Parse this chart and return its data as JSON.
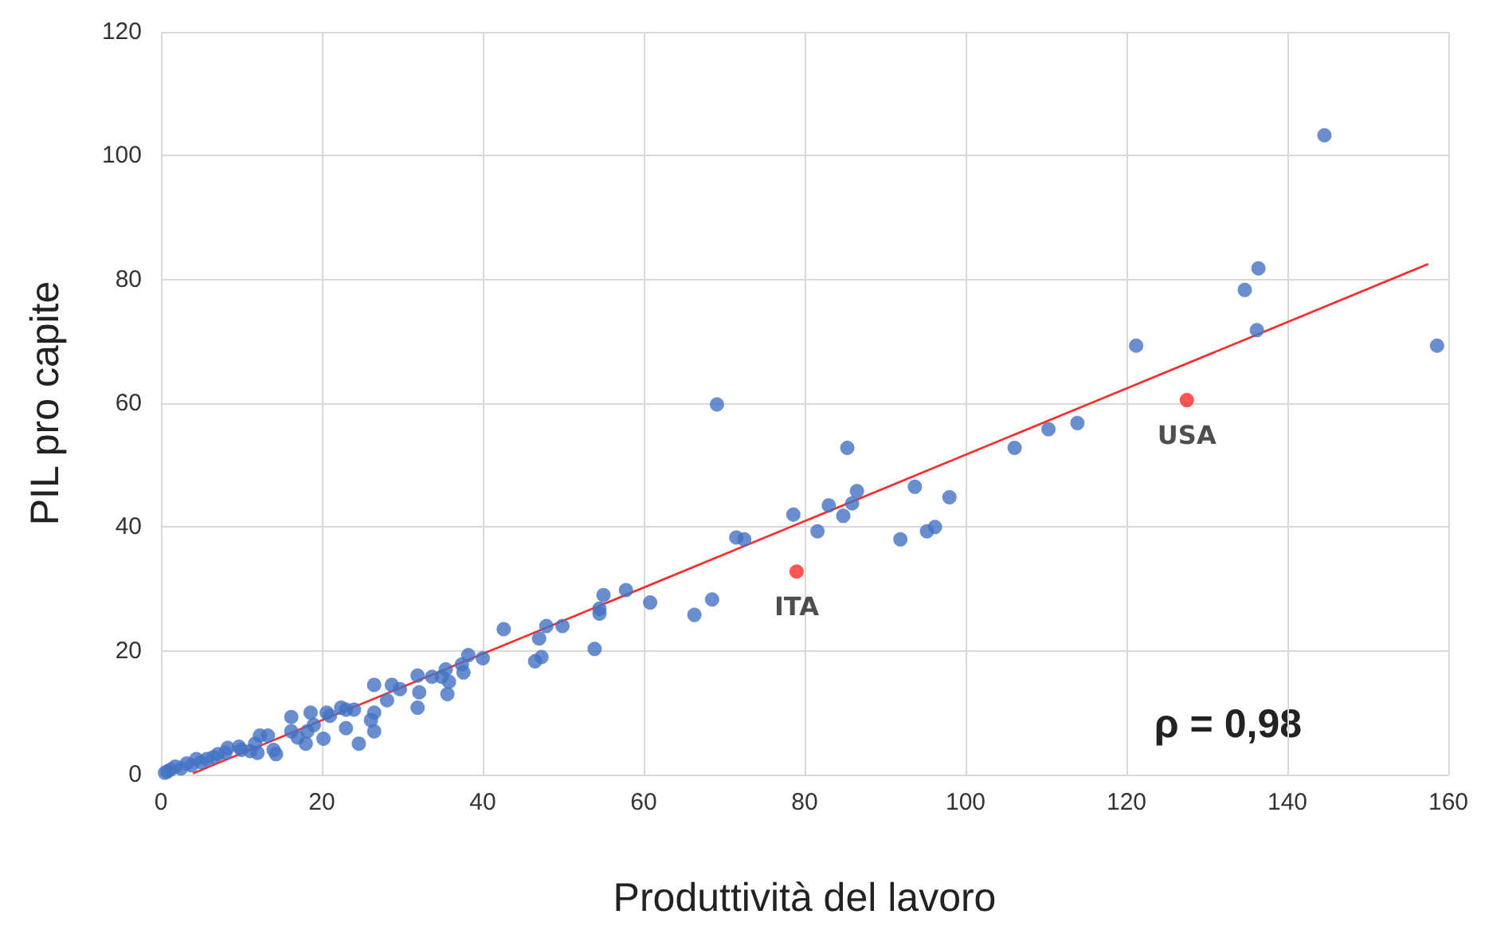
{
  "chart_data": {
    "type": "scatter",
    "xlabel": "Produttività del lavoro",
    "ylabel": "PIL pro capite",
    "xlim": [
      0,
      160
    ],
    "ylim": [
      0,
      120
    ],
    "xticks": [
      0,
      20,
      40,
      60,
      80,
      100,
      120,
      140,
      160
    ],
    "yticks": [
      0,
      20,
      40,
      60,
      80,
      100,
      120
    ],
    "grid": true,
    "marker": "circle",
    "series": [
      {
        "color": "#4472c4",
        "x": [
          144.6,
          136.4,
          134.7,
          136.2,
          158.6,
          121.2,
          113.9,
          110.3,
          106.1,
          85.3,
          69.1,
          93.7,
          98.0,
          86.5,
          85.9,
          83.0,
          84.8,
          78.6,
          81.6,
          96.2,
          95.2,
          91.9,
          71.5,
          72.5,
          68.5,
          66.3,
          60.8,
          57.8,
          55.0,
          54.5,
          54.5,
          53.9,
          49.9,
          47.9,
          47.3,
          46.5,
          47.0,
          42.6,
          40.0,
          38.2,
          37.4,
          37.6,
          35.8,
          35.4,
          35.6,
          34.9,
          33.7,
          31.9,
          32.1,
          31.9,
          29.7,
          28.7,
          26.5,
          28.1,
          26.5,
          26.5,
          26.1,
          24.6,
          24.0,
          23.0,
          22.4,
          20.6,
          20.2,
          18.6,
          18.2,
          18.0,
          16.2,
          16.2,
          14.3,
          13.3,
          12.3,
          11.7,
          11.1,
          9.7,
          8.3,
          7.1,
          5.7,
          4.4,
          3.2,
          1.8,
          0.8,
          0.5,
          1.2,
          2.5,
          3.8,
          5.0,
          6.5,
          8.0,
          10.0,
          12.0,
          14.0,
          17.0,
          19.0,
          21.0,
          23.0
        ],
        "values": [
          103.3,
          81.8,
          78.3,
          71.8,
          69.3,
          69.3,
          56.8,
          55.8,
          52.8,
          52.8,
          59.8,
          46.5,
          44.8,
          45.8,
          43.8,
          43.5,
          41.8,
          42.0,
          39.3,
          40.0,
          39.3,
          38.0,
          38.3,
          38.0,
          28.3,
          25.8,
          27.8,
          29.8,
          29.0,
          26.8,
          26.0,
          20.3,
          24.0,
          24.0,
          19.0,
          18.3,
          22.0,
          23.5,
          18.8,
          19.3,
          17.8,
          16.5,
          15.0,
          17.0,
          13.0,
          15.8,
          15.8,
          16.0,
          13.3,
          10.8,
          13.8,
          14.5,
          14.5,
          12.0,
          10.0,
          7.0,
          8.8,
          5.0,
          10.5,
          7.5,
          10.8,
          10.0,
          5.8,
          10.0,
          7.0,
          5.0,
          9.3,
          7.0,
          3.3,
          6.3,
          6.3,
          5.0,
          3.8,
          4.5,
          4.3,
          3.3,
          2.5,
          2.5,
          1.8,
          1.3,
          0.5,
          0.3,
          0.8,
          1.0,
          1.5,
          2.0,
          2.8,
          3.5,
          4.0,
          3.5,
          4.0,
          6.0,
          8.0,
          9.5,
          10.5
        ]
      },
      {
        "color": "#ff2a2a",
        "x": [
          79.0,
          127.5
        ],
        "values": [
          32.8,
          60.5
        ]
      },
      {
        "type": "line",
        "color": "#ff2a2a",
        "marker": "none",
        "x": [
          4,
          157.5
        ],
        "values": [
          0.2,
          82.5
        ]
      }
    ],
    "annotations": [
      {
        "text": "ITA",
        "x": 79.0,
        "y": 32.8
      },
      {
        "text": "USA",
        "x": 127.5,
        "y": 60.5
      },
      "ρ = 0,98"
    ]
  }
}
